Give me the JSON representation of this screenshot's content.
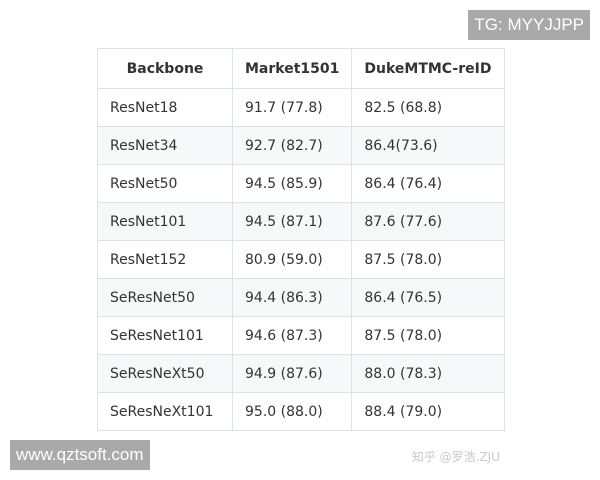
{
  "table": {
    "headers": [
      "Backbone",
      "Market1501",
      "DukeMTMC-reID"
    ],
    "rows": [
      [
        "ResNet18",
        "91.7 (77.8)",
        "82.5 (68.8)"
      ],
      [
        "ResNet34",
        "92.7 (82.7)",
        "86.4(73.6)"
      ],
      [
        "ResNet50",
        "94.5 (85.9)",
        "86.4 (76.4)"
      ],
      [
        "ResNet101",
        "94.5 (87.1)",
        "87.6 (77.6)"
      ],
      [
        "ResNet152",
        "80.9 (59.0)",
        "87.5 (78.0)"
      ],
      [
        "SeResNet50",
        "94.4 (86.3)",
        "86.4 (76.5)"
      ],
      [
        "SeResNet101",
        "94.6 (87.3)",
        "87.5 (78.0)"
      ],
      [
        "SeResNeXt50",
        "94.9 (87.6)",
        "88.0 (78.3)"
      ],
      [
        "SeResNeXt101",
        "95.0 (88.0)",
        "88.4 (79.0)"
      ]
    ]
  },
  "watermarks": {
    "top_right": "TG: MYYJJPP",
    "bottom_left": "www.qztsoft.com",
    "zhihu": "知乎 @罗浩.ZJU"
  }
}
